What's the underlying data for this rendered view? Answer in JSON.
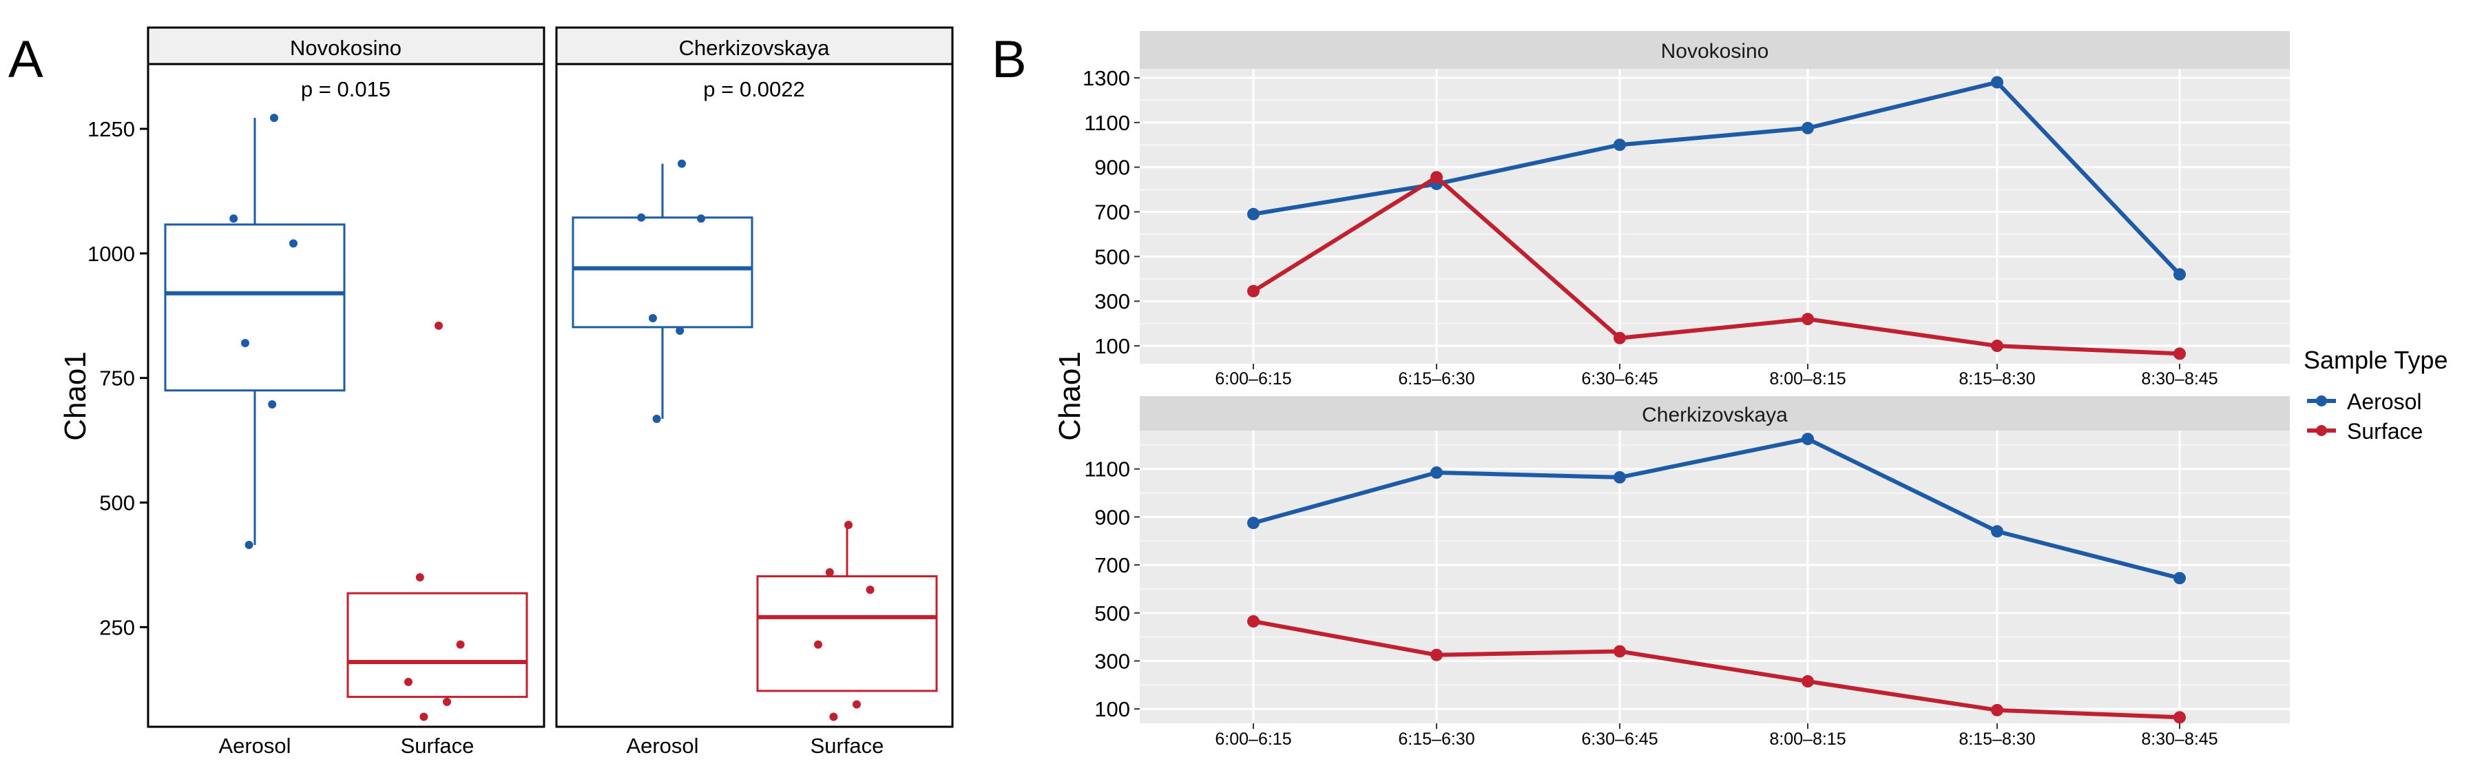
{
  "panel_a": {
    "letter": "A",
    "ylabel": "Chao1",
    "y_ticks": [
      250,
      500,
      750,
      1000,
      1250
    ],
    "categories": [
      "Aerosol",
      "Surface"
    ],
    "facets": [
      {
        "name": "Novokosino",
        "p_value": "p = 0.015",
        "boxes": [
          {
            "type": "Aerosol",
            "q1": 725,
            "median": 920,
            "q3": 1058,
            "lower": 415,
            "upper": 1272,
            "points": [
              1272,
              1070,
              1020,
              820,
              697,
              415
            ]
          },
          {
            "type": "Surface",
            "q1": 110,
            "median": 180,
            "q3": 318,
            "lower": 110,
            "upper": 318,
            "points": [
              855,
              350,
              215,
              140,
              100,
              70
            ]
          }
        ]
      },
      {
        "name": "Cherkizovskaya",
        "p_value": "p = 0.0022",
        "boxes": [
          {
            "type": "Aerosol",
            "q1": 852,
            "median": 970,
            "q3": 1072,
            "lower": 668,
            "upper": 1180,
            "points": [
              1180,
              1072,
              1070,
              870,
              845,
              668
            ]
          },
          {
            "type": "Surface",
            "q1": 122,
            "median": 270,
            "q3": 352,
            "lower": 122,
            "upper": 455,
            "points": [
              455,
              360,
              325,
              215,
              95,
              70
            ]
          }
        ]
      }
    ]
  },
  "panel_b": {
    "letter": "B",
    "ylabel": "Chao1",
    "legend_title": "Sample Type",
    "colors": {
      "Aerosol": "#1d5ba6",
      "Surface": "#c0202f"
    },
    "x_labels": [
      "6:00–6:15",
      "6:15–6:30",
      "6:30–6:45",
      "8:00–8:15",
      "8:15–8:30",
      "8:30–8:45"
    ],
    "facets": [
      {
        "name": "Novokosino",
        "y_ticks": [
          100,
          300,
          500,
          700,
          900,
          1100,
          1300
        ],
        "series": [
          {
            "name": "Aerosol",
            "values": [
              690,
              825,
              1000,
              1075,
              1280,
              420
            ]
          },
          {
            "name": "Surface",
            "values": [
              345,
              855,
              135,
              220,
              100,
              65
            ]
          }
        ]
      },
      {
        "name": "Cherkizovskaya",
        "y_ticks": [
          100,
          300,
          500,
          700,
          900,
          1100
        ],
        "series": [
          {
            "name": "Aerosol",
            "values": [
              875,
              1085,
              1065,
              1225,
              840,
              645
            ]
          },
          {
            "name": "Surface",
            "values": [
              465,
              325,
              340,
              215,
              95,
              65
            ]
          }
        ]
      }
    ]
  },
  "chart_data": [
    {
      "type": "box",
      "title": "",
      "xlabel": "",
      "ylabel": "Chao1",
      "categories": [
        "Aerosol",
        "Surface"
      ],
      "ylim": [
        50,
        1380
      ],
      "facets": [
        "Novokosino",
        "Cherkizovskaya"
      ],
      "annotations": [
        "p = 0.015",
        "p = 0.0022"
      ]
    },
    {
      "type": "line",
      "title": "",
      "ylabel": "Chao1",
      "x": [
        "6:00–6:15",
        "6:15–6:30",
        "6:30–6:45",
        "8:00–8:15",
        "8:15–8:30",
        "8:30–8:45"
      ],
      "legend_title": "Sample Type",
      "facets": [
        "Novokosino",
        "Cherkizovskaya"
      ],
      "ylim": [
        [
          20,
          1340
        ],
        [
          40,
          1260
        ]
      ]
    }
  ]
}
